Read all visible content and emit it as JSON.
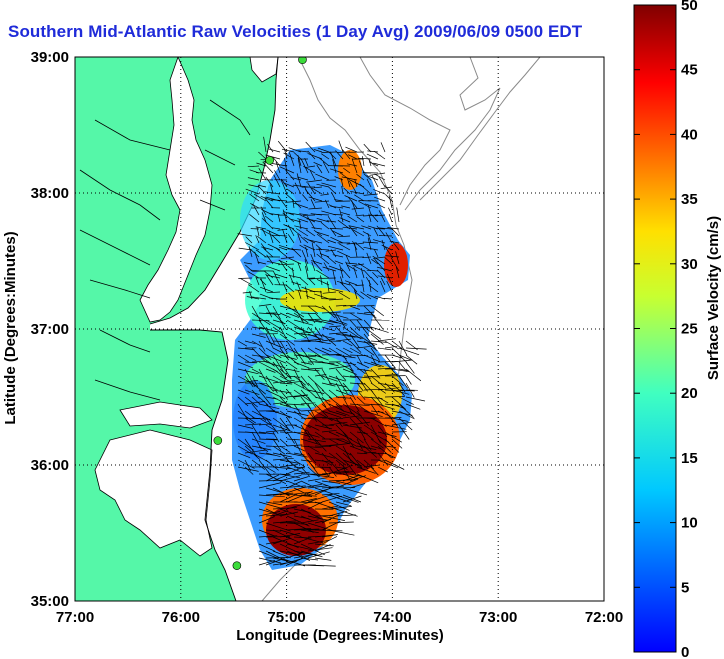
{
  "title": "Southern Mid-Atlantic Raw Velocities (1 Day Avg) 2009/06/09 0500 EDT",
  "map": {
    "x_label": "Longitude (Degrees:Minutes)",
    "y_label": "Latitude (Degrees:Minutes)",
    "x_ticks": [
      "77:00",
      "76:00",
      "75:00",
      "74:00",
      "73:00",
      "72:00"
    ],
    "y_ticks": [
      "39:00",
      "38:00",
      "37:00",
      "36:00",
      "35:00"
    ],
    "land_color": "#55f7a8",
    "grid": "dotted"
  },
  "colorbar": {
    "label": "Surface Velocity (cm/s)",
    "ticks": [
      "50",
      "45",
      "40",
      "35",
      "30",
      "25",
      "20",
      "15",
      "10",
      "5",
      "0"
    ],
    "min": 0,
    "max": 50,
    "units": "cm/s",
    "colormap": "jet"
  },
  "chart_data": {
    "type": "heatmap",
    "title": "Southern Mid-Atlantic Raw Velocities (1 Day Avg) 2009/06/09 0500 EDT",
    "xlabel": "Longitude (Degrees:Minutes)",
    "ylabel": "Latitude (Degrees:Minutes)",
    "xlim": [
      -77,
      -72
    ],
    "ylim": [
      35,
      39
    ],
    "value_label": "Surface Velocity (cm/s)",
    "value_range": [
      0,
      50
    ],
    "hf_radar_sites": [
      {
        "lon": -74.85,
        "lat": 38.98
      },
      {
        "lon": -75.16,
        "lat": 38.24
      },
      {
        "lon": -75.65,
        "lat": 36.18
      },
      {
        "lon": -75.47,
        "lat": 35.26
      }
    ]
  }
}
